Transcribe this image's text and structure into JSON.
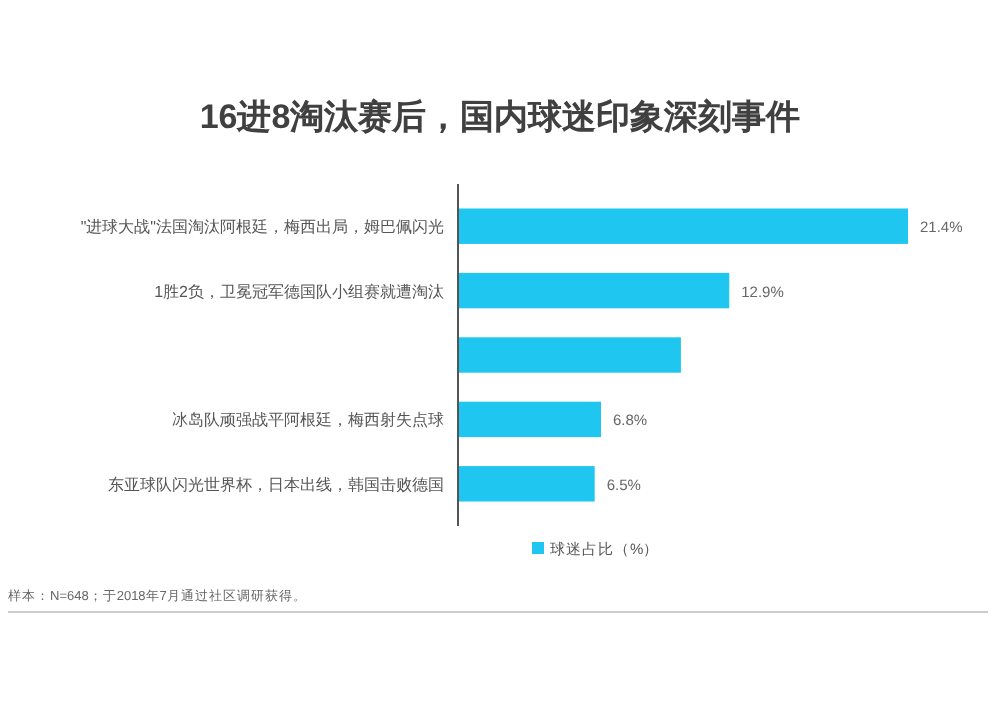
{
  "chart_data": {
    "type": "bar",
    "orientation": "horizontal",
    "title": "16进8淘汰赛后，国内球迷印象深刻事件",
    "categories": [
      "\"进球大战\"法国淘汰阿根廷，梅西出局，姆巴佩闪光",
      "1胜2负，卫冕冠军德国队小组赛就遭淘汰",
      null,
      "冰岛队顽强战平阿根廷，梅西射失点球",
      "东亚球队闪光世界杯，日本出线，韩国击败德国"
    ],
    "series": [
      {
        "name": "球迷占比（%）",
        "color": "#1fc6ef",
        "values": [
          21.4,
          12.9,
          10.6,
          6.8,
          6.5
        ],
        "value_labels": [
          "21.4%",
          "12.9%",
          null,
          "6.8%",
          "6.5%"
        ]
      }
    ],
    "legend": "bottom",
    "annotations": [
      "样本：N=648；于2018年7月通过社区调研获得。"
    ]
  }
}
